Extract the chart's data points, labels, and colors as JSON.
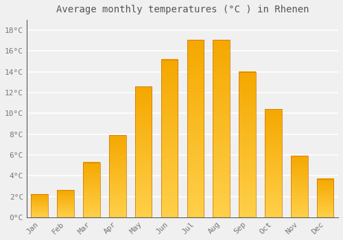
{
  "title": "Average monthly temperatures (°C ) in Rhenen",
  "months": [
    "Jan",
    "Feb",
    "Mar",
    "Apr",
    "May",
    "Jun",
    "Jul",
    "Aug",
    "Sep",
    "Oct",
    "Nov",
    "Dec"
  ],
  "values": [
    2.2,
    2.6,
    5.3,
    7.9,
    12.6,
    15.2,
    17.1,
    17.1,
    14.0,
    10.4,
    5.9,
    3.7
  ],
  "bar_color_bottom": "#FFD04A",
  "bar_color_top": "#F5A800",
  "bar_edge_color": "#C87000",
  "ylim": [
    0,
    19
  ],
  "yticks": [
    0,
    2,
    4,
    6,
    8,
    10,
    12,
    14,
    16,
    18
  ],
  "ytick_labels": [
    "0°C",
    "2°C",
    "4°C",
    "6°C",
    "8°C",
    "10°C",
    "12°C",
    "14°C",
    "16°C",
    "18°C"
  ],
  "background_color": "#f0f0f0",
  "grid_color": "#ffffff",
  "title_fontsize": 10,
  "tick_fontsize": 8,
  "bar_width": 0.65,
  "figsize": [
    5.0,
    3.5
  ],
  "dpi": 100
}
